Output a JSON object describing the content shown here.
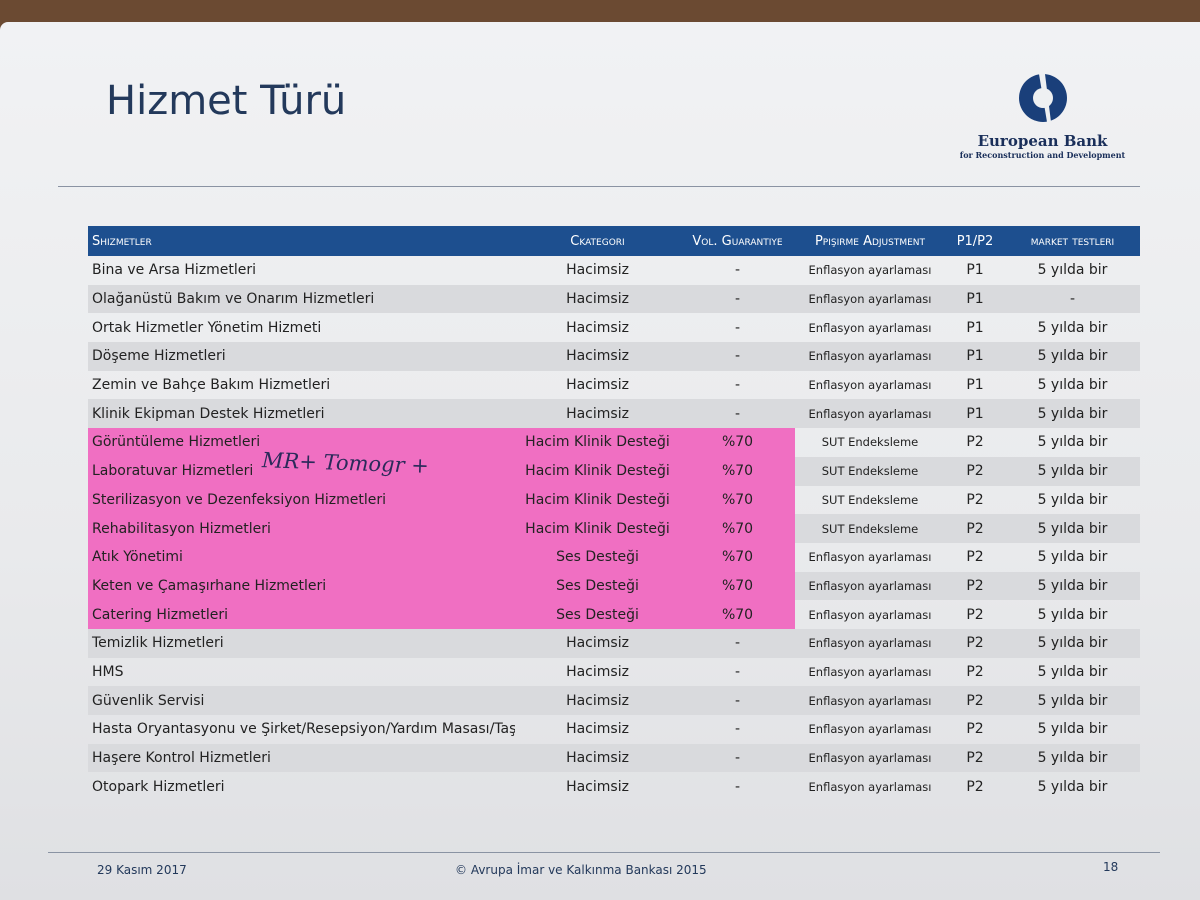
{
  "header": {
    "title": "Hizmet Türü",
    "logo_name": "European Bank",
    "logo_sub": "for Reconstruction and Development"
  },
  "table": {
    "columns": [
      "Shizmetler",
      "Ckategori",
      "Vol. Guarantiye",
      "Ppişirme Adjustment",
      "P1/P2",
      "market testleri"
    ],
    "rows": [
      [
        "Bina ve Arsa Hizmetleri",
        "Hacimsiz",
        "-",
        "Enflasyon ayarlaması",
        "P1",
        "5 yılda bir"
      ],
      [
        "Olağanüstü Bakım ve Onarım Hizmetleri",
        "Hacimsiz",
        "-",
        "Enflasyon ayarlaması",
        "P1",
        "-"
      ],
      [
        "Ortak Hizmetler Yönetim Hizmeti",
        "Hacimsiz",
        "-",
        "Enflasyon ayarlaması",
        "P1",
        "5 yılda bir"
      ],
      [
        "Döşeme Hizmetleri",
        "Hacimsiz",
        "-",
        "Enflasyon ayarlaması",
        "P1",
        "5 yılda bir"
      ],
      [
        "Zemin ve Bahçe Bakım Hizmetleri",
        "Hacimsiz",
        "-",
        "Enflasyon ayarlaması",
        "P1",
        "5 yılda bir"
      ],
      [
        "Klinik Ekipman Destek Hizmetleri",
        "Hacimsiz",
        "-",
        "Enflasyon ayarlaması",
        "P1",
        "5 yılda bir"
      ],
      [
        "Görüntüleme Hizmetleri",
        "Hacim Klinik Desteği",
        "%70",
        "SUT Endeksleme",
        "P2",
        "5 yılda bir"
      ],
      [
        "Laboratuvar Hizmetleri",
        "Hacim Klinik Desteği",
        "%70",
        "SUT Endeksleme",
        "P2",
        "5 yılda bir"
      ],
      [
        "Sterilizasyon ve Dezenfeksiyon Hizmetleri",
        "Hacim Klinik Desteği",
        "%70",
        "SUT Endeksleme",
        "P2",
        "5 yılda bir"
      ],
      [
        "Rehabilitasyon Hizmetleri",
        "Hacim Klinik Desteği",
        "%70",
        "SUT Endeksleme",
        "P2",
        "5 yılda bir"
      ],
      [
        "Atık Yönetimi",
        "Ses Desteği",
        "%70",
        "Enflasyon ayarlaması",
        "P2",
        "5 yılda bir"
      ],
      [
        "Keten ve Çamaşırhane Hizmetleri",
        "Ses Desteği",
        "%70",
        "Enflasyon ayarlaması",
        "P2",
        "5 yılda bir"
      ],
      [
        "Catering Hizmetleri",
        "Ses Desteği",
        "%70",
        "Enflasyon ayarlaması",
        "P2",
        "5 yılda bir"
      ],
      [
        "Temizlik Hizmetleri",
        "Hacimsiz",
        "-",
        "Enflasyon ayarlaması",
        "P2",
        "5 yılda bir"
      ],
      [
        "HMS",
        "Hacimsiz",
        "-",
        "Enflasyon ayarlaması",
        "P2",
        "5 yılda bir"
      ],
      [
        "Güvenlik Servisi",
        "Hacimsiz",
        "-",
        "Enflasyon ayarlaması",
        "P2",
        "5 yılda bir"
      ],
      [
        "Hasta Oryantasyonu ve Şirket/Resepsiyon/Yardım Masası/Taşımacılık",
        "Hacimsiz",
        "-",
        "Enflasyon ayarlaması",
        "P2",
        "5 yılda bir"
      ],
      [
        "Haşere Kontrol Hizmetleri",
        "Hacimsiz",
        "-",
        "Enflasyon ayarlaması",
        "P2",
        "5 yılda bir"
      ],
      [
        "Otopark Hizmetleri",
        "Hacimsiz",
        "-",
        "Enflasyon ayarlaması",
        "P2",
        "5 yılda bir"
      ]
    ]
  },
  "handwriting": "MR+ Tomogr +",
  "footer": {
    "date": "29 Kasım 2017",
    "copyright": "© Avrupa İmar ve Kalkınma Bankası 2015",
    "page": "18"
  }
}
